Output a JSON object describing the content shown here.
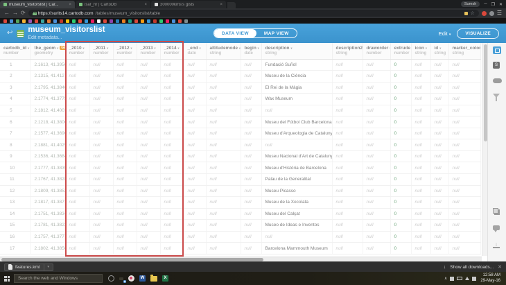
{
  "browser": {
    "tabs": [
      {
        "label": "museum_visitorslist | Car...",
        "active": true
      },
      {
        "label": "isar_hr | CartoDB",
        "active": false
      },
      {
        "label": "300000kms's gists",
        "active": false
      }
    ],
    "profile": "Suresh",
    "url_domain": "https://surits14.cartodb.com",
    "url_path": "/tables/museum_visitorslist/table",
    "bookmark_colors": [
      "#d9483b",
      "#4a90d9",
      "#58a55c",
      "#f2b134",
      "#9b59b6",
      "#d9483b",
      "#3aa6a0",
      "#e07b39",
      "#4a90d9",
      "#c0392b",
      "#f1c40f",
      "#2ecc71",
      "#e74c3c",
      "#3498db",
      "#e91e63",
      "#ffffff",
      "#d9483b",
      "#8e44ad",
      "#2980b9",
      "#e67e22",
      "#16a085",
      "#d9483b",
      "#f39c12",
      "#3498db",
      "#c0392b",
      "#2ecc71",
      "#e91e63",
      "#4a90d9",
      "#d9483b",
      "#7f8c8d"
    ]
  },
  "app": {
    "title": "museum_visitorslist",
    "subtitle": "Edit metadata...",
    "data_view": "DATA VIEW",
    "map_view": "MAP VIEW",
    "edit_label": "Edit",
    "edit_caret": "▾",
    "visualize_label": "VISUALIZE"
  },
  "colors": {
    "accent_blue": "#3d97d2",
    "geo_badge": "#e8a33d",
    "highlight_box": "#cc4b4b",
    "null_text": "#cccccc",
    "zero_green": "#6aa378"
  },
  "table": {
    "columns": [
      {
        "name": "cartodb_id",
        "type": "number"
      },
      {
        "name": "the_geom",
        "type": "geometry",
        "badge": "GEO"
      },
      {
        "name": "_2010",
        "type": "number"
      },
      {
        "name": "_2011",
        "type": "number"
      },
      {
        "name": "_2012",
        "type": "number"
      },
      {
        "name": "_2013",
        "type": "number"
      },
      {
        "name": "_2014",
        "type": "number"
      },
      {
        "name": "_end",
        "type": "date"
      },
      {
        "name": "altitudemode",
        "type": "string"
      },
      {
        "name": "begin",
        "type": "date"
      },
      {
        "name": "description",
        "type": "string"
      },
      {
        "name": "description2",
        "type": "string"
      },
      {
        "name": "draworder",
        "type": "number"
      },
      {
        "name": "extrude",
        "type": "number"
      },
      {
        "name": "icon",
        "type": "string"
      },
      {
        "name": "id",
        "type": "string"
      },
      {
        "name": "marker_color",
        "type": "string"
      }
    ],
    "rows": [
      [
        "1",
        "2.1613, 41.3956",
        "null",
        "null",
        "null",
        "null",
        "null",
        "null",
        "null",
        "null",
        "Fundació Suñol",
        "null",
        "null",
        "0",
        "null",
        "null",
        "null"
      ],
      [
        "2",
        "2.1315, 41.4127",
        "null",
        "null",
        "null",
        "null",
        "null",
        "null",
        "null",
        "null",
        "Museu de la Ciència",
        "null",
        "null",
        "0",
        "null",
        "null",
        "null"
      ],
      [
        "3",
        "2.1795, 41.3846",
        "null",
        "null",
        "null",
        "null",
        "null",
        "null",
        "null",
        "null",
        "El Rei de la Màgia",
        "null",
        "null",
        "0",
        "null",
        "null",
        "null"
      ],
      [
        "4",
        "2.1774, 41.3775",
        "null",
        "null",
        "null",
        "null",
        "null",
        "null",
        "null",
        "null",
        "Wax Museum",
        "null",
        "null",
        "0",
        "null",
        "null",
        "null"
      ],
      [
        "5",
        "2.1812, 41.4001",
        "null",
        "null",
        "null",
        "null",
        "null",
        "null",
        "null",
        "null",
        "null",
        "null",
        "null",
        "0",
        "null",
        "null",
        "null"
      ],
      [
        "6",
        "2.1218, 41.3806",
        "null",
        "null",
        "null",
        "null",
        "null",
        "null",
        "null",
        "null",
        "Museu del Fútbol Club Barcelona",
        "null",
        "null",
        "0",
        "null",
        "null",
        "null"
      ],
      [
        "7",
        "2.1577, 41.3696",
        "null",
        "null",
        "null",
        "null",
        "null",
        "null",
        "null",
        "null",
        "Museu d'Arqueologia de Catalunya",
        "null",
        "null",
        "0",
        "null",
        "null",
        "null"
      ],
      [
        "8",
        "2.1881, 41.4025",
        "null",
        "null",
        "null",
        "null",
        "null",
        "null",
        "null",
        "null",
        "null",
        "null",
        "null",
        "0",
        "null",
        "null",
        "null"
      ],
      [
        "9",
        "2.1536, 41.3684",
        "null",
        "null",
        "null",
        "null",
        "null",
        "null",
        "null",
        "null",
        "Museu Nacional d'Art de Catalunya",
        "null",
        "null",
        "0",
        "null",
        "null",
        "null"
      ],
      [
        "10",
        "2.1777, 41.3839",
        "null",
        "null",
        "null",
        "null",
        "null",
        "null",
        "null",
        "null",
        "Museu d'Història de Barcelona",
        "null",
        "null",
        "0",
        "null",
        "null",
        "null"
      ],
      [
        "11",
        "2.1767, 41.3828",
        "null",
        "null",
        "null",
        "null",
        "null",
        "null",
        "null",
        "null",
        "Palau de la Generalitat",
        "null",
        "null",
        "0",
        "null",
        "null",
        "null"
      ],
      [
        "12",
        "2.1809, 41.3852",
        "null",
        "null",
        "null",
        "null",
        "null",
        "null",
        "null",
        "null",
        "Museu Picasso",
        "null",
        "null",
        "0",
        "null",
        "null",
        "null"
      ],
      [
        "13",
        "2.1817, 41.3871",
        "null",
        "null",
        "null",
        "null",
        "null",
        "null",
        "null",
        "null",
        "Museu de la Xocolata",
        "null",
        "null",
        "0",
        "null",
        "null",
        "null"
      ],
      [
        "14",
        "2.1751, 41.3834",
        "null",
        "null",
        "null",
        "null",
        "null",
        "null",
        "null",
        "null",
        "Museu del Calçat",
        "null",
        "null",
        "0",
        "null",
        "null",
        "null"
      ],
      [
        "15",
        "2.1781, 41.3822",
        "null",
        "null",
        "null",
        "null",
        "null",
        "null",
        "null",
        "null",
        "Museo de Ideas e Inventos",
        "null",
        "null",
        "0",
        "null",
        "null",
        "null"
      ],
      [
        "16",
        "2.1757, 41.3777",
        "null",
        "null",
        "null",
        "null",
        "null",
        "null",
        "null",
        "null",
        "null",
        "null",
        "null",
        "0",
        "null",
        "null",
        "null"
      ],
      [
        "17",
        "2.1802, 41.3856",
        "null",
        "null",
        "null",
        "null",
        "null",
        "null",
        "null",
        "null",
        "Barcelona Mammouth Museum",
        "null",
        "null",
        "0",
        "null",
        "null",
        "null"
      ]
    ]
  },
  "downloads": {
    "file": "features.kml",
    "show_all": "Show all downloads...",
    "arrow": "↓",
    "close": "✕"
  },
  "taskbar": {
    "search_placeholder": "Search the web and Windows",
    "time": "12:58 AM",
    "date": "29-May-16"
  }
}
